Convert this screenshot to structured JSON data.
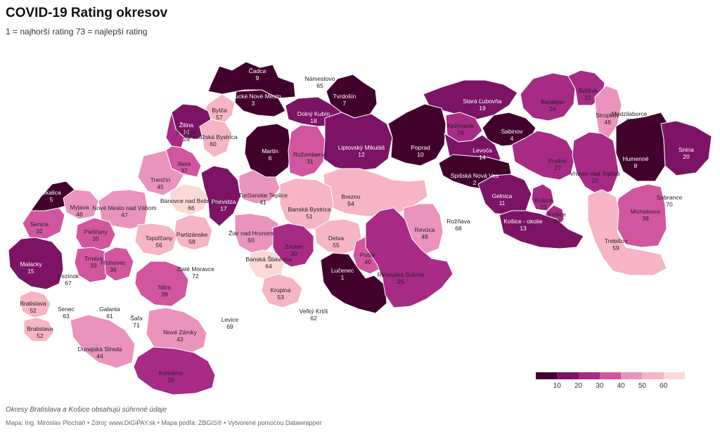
{
  "header": {
    "title": "COVID-19 Rating okresov",
    "subtitle": "1 = najhorší rating 73 = najlepší rating"
  },
  "colors": {
    "c1": "#42002d",
    "c2": "#7c1364",
    "c3": "#a72a85",
    "c4": "#d2559f",
    "c5": "#ea93bd",
    "c6": "#f6b4c4",
    "c7": "#fbd9d7"
  },
  "districts": [
    {
      "name": "Čadca",
      "rating": "9"
    },
    {
      "name": "Námestovo",
      "rating": "65"
    },
    {
      "name": "Kysucké Nové Mesto",
      "rating": "3"
    },
    {
      "name": "Tvrdošín",
      "rating": "7"
    },
    {
      "name": "Bytča",
      "rating": "57"
    },
    {
      "name": "Dolný Kubín",
      "rating": "18"
    },
    {
      "name": "Stará Ľubovňa",
      "rating": "19"
    },
    {
      "name": "Bardejov",
      "rating": "24"
    },
    {
      "name": "Svidník",
      "rating": "21"
    },
    {
      "name": "Žilina",
      "rating": "16"
    },
    {
      "name": "Považská Bystrica",
      "rating": "60"
    },
    {
      "name": "Kežmarok",
      "rating": "29"
    },
    {
      "name": "Stropkov",
      "rating": "48"
    },
    {
      "name": "Medzilaborce",
      "rating": "73"
    },
    {
      "name": "Púchov",
      "rating": "28"
    },
    {
      "name": "Sabinov",
      "rating": "4"
    },
    {
      "name": "Martin",
      "rating": "6"
    },
    {
      "name": "Ružomberok",
      "rating": "31"
    },
    {
      "name": "Liptovský Mikuláš",
      "rating": "12"
    },
    {
      "name": "Poprad",
      "rating": "10"
    },
    {
      "name": "Levoča",
      "rating": "14"
    },
    {
      "name": "Humenné",
      "rating": "8"
    },
    {
      "name": "Snina",
      "rating": "20"
    },
    {
      "name": "Ilava",
      "rating": "37"
    },
    {
      "name": "Prešov",
      "rating": "27"
    },
    {
      "name": "Trenčín",
      "rating": "45"
    },
    {
      "name": "Vranov nad Topľou",
      "rating": "22"
    },
    {
      "name": "Turčianske Teplice",
      "rating": "41"
    },
    {
      "name": "Spišská Nová Ves",
      "rating": "2"
    },
    {
      "name": "Skalica",
      "rating": "5"
    },
    {
      "name": "Bánovce nad Bebravou",
      "rating": "66"
    },
    {
      "name": "Prievidza",
      "rating": "17"
    },
    {
      "name": "Brezno",
      "rating": "54"
    },
    {
      "name": "Gelnica",
      "rating": "11"
    },
    {
      "name": "Sobrance",
      "rating": "70"
    },
    {
      "name": "Myjava",
      "rating": "46"
    },
    {
      "name": "Banská Bystrica",
      "rating": "51"
    },
    {
      "name": "Košice",
      "rating": "23"
    },
    {
      "name": "Košice",
      "rating": "23"
    },
    {
      "name": "Nové Mesto nad Váhom",
      "rating": "47"
    },
    {
      "name": "Senica",
      "rating": "32"
    },
    {
      "name": "Rožňava",
      "rating": "68"
    },
    {
      "name": "Košice - okolie",
      "rating": "13"
    },
    {
      "name": "Michalovce",
      "rating": "38"
    },
    {
      "name": "Piešťany",
      "rating": "35"
    },
    {
      "name": "Partizánske",
      "rating": "58"
    },
    {
      "name": "Žiar nad Hronom",
      "rating": "50"
    },
    {
      "name": "Revúca",
      "rating": "49"
    },
    {
      "name": "Topoľčany",
      "rating": "56"
    },
    {
      "name": "Detva",
      "rating": "55"
    },
    {
      "name": "Zvolen",
      "rating": "30"
    },
    {
      "name": "Trebišov",
      "rating": "59"
    },
    {
      "name": "Malacky",
      "rating": "15"
    },
    {
      "name": "Trnava",
      "rating": "33"
    },
    {
      "name": "Hlohovec",
      "rating": "36"
    },
    {
      "name": "Poltár",
      "rating": "40"
    },
    {
      "name": "Zlaté Moravce",
      "rating": "72"
    },
    {
      "name": "Banská Štiavnica",
      "rating": "64"
    },
    {
      "name": "Pezinok",
      "rating": "67"
    },
    {
      "name": "Lučenec",
      "rating": "1"
    },
    {
      "name": "Rimavská Sobota",
      "rating": "25"
    },
    {
      "name": "Nitra",
      "rating": "39"
    },
    {
      "name": "Krupina",
      "rating": "53"
    },
    {
      "name": "Bratislava",
      "rating": "52"
    },
    {
      "name": "Senec",
      "rating": "63"
    },
    {
      "name": "Galanta",
      "rating": "61"
    },
    {
      "name": "Šaľa",
      "rating": "71"
    },
    {
      "name": "Levice",
      "rating": "69"
    },
    {
      "name": "Veľký Krtíš",
      "rating": "62"
    },
    {
      "name": "Bratislava",
      "rating": "52"
    },
    {
      "name": "Nové Zámky",
      "rating": "43"
    },
    {
      "name": "Dunajská Streda",
      "rating": "44"
    },
    {
      "name": "Komárno",
      "rating": "26"
    }
  ],
  "legend": {
    "colors": [
      "#42002d",
      "#7c1364",
      "#a72a85",
      "#d2559f",
      "#ea93bd",
      "#f6b4c4",
      "#fbd9d7"
    ],
    "ticks": [
      "10",
      "20",
      "30",
      "40",
      "50",
      "60"
    ]
  },
  "note": "Okresy Bratislava a Košice obsahujú súhrnné údaje",
  "footer": "Mapa: Ing. Miroslav Plocháň • Zdroj: www.DiGiPAY.sk • Mapa podľa: ZBGIS® • Vytvorené pomocou Datawrapper"
}
